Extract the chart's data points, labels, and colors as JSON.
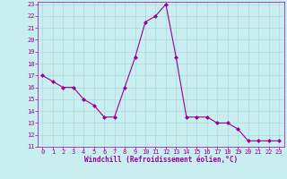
{
  "hours": [
    0,
    1,
    2,
    3,
    4,
    5,
    6,
    7,
    8,
    9,
    10,
    11,
    12,
    13,
    14,
    15,
    16,
    17,
    18,
    19,
    20,
    21,
    22,
    23
  ],
  "values": [
    17,
    16.5,
    16,
    16,
    15,
    14.5,
    13.5,
    13.5,
    16,
    18.5,
    21.5,
    22,
    23,
    18.5,
    13.5,
    13.5,
    13.5,
    13,
    13,
    12.5,
    11.5,
    11.5,
    11.5,
    11.5
  ],
  "line_color": "#990099",
  "marker": "D",
  "marker_size": 2,
  "bg_color": "#c8eef0",
  "grid_color": "#b0d8dc",
  "ylim": [
    11,
    23
  ],
  "xlim": [
    -0.5,
    23.5
  ],
  "yticks": [
    11,
    12,
    13,
    14,
    15,
    16,
    17,
    18,
    19,
    20,
    21,
    22,
    23
  ],
  "xticks": [
    0,
    1,
    2,
    3,
    4,
    5,
    6,
    7,
    8,
    9,
    10,
    11,
    12,
    13,
    14,
    15,
    16,
    17,
    18,
    19,
    20,
    21,
    22,
    23
  ],
  "xlabel": "Windchill (Refroidissement éolien,°C)",
  "xlabel_color": "#990099",
  "tick_color": "#990099",
  "tick_labelsize": 5,
  "xlabel_fontsize": 5.5
}
